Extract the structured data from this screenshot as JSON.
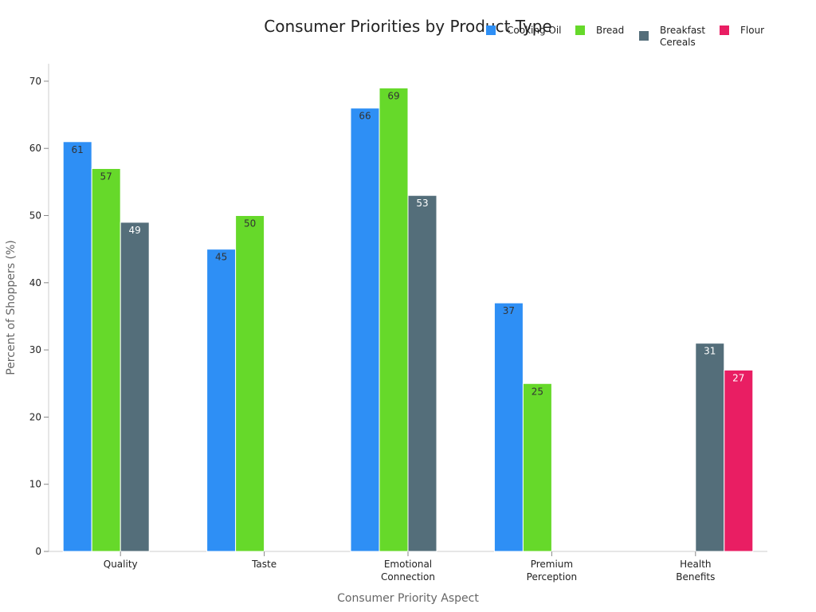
{
  "chart_data": {
    "type": "bar",
    "title": "Consumer Priorities by Product Type",
    "xlabel": "Consumer Priority Aspect",
    "ylabel": "Percent of Shoppers (%)",
    "ylim": [
      0,
      72.6
    ],
    "yticks": [
      0,
      10,
      20,
      30,
      40,
      50,
      60,
      70
    ],
    "categories": [
      [
        "Quality"
      ],
      [
        "Taste"
      ],
      [
        "Emotional",
        "Connection"
      ],
      [
        "Premium",
        "Perception"
      ],
      [
        "Health",
        "Benefits"
      ]
    ],
    "series": [
      {
        "name": [
          "Cooking Oil"
        ],
        "color": "#2e8ff5",
        "label_color": "#333333",
        "values": [
          61,
          45,
          66,
          37,
          null
        ]
      },
      {
        "name": [
          "Bread"
        ],
        "color": "#66d92a",
        "label_color": "#333333",
        "values": [
          57,
          50,
          69,
          25,
          null
        ]
      },
      {
        "name": [
          "Breakfast",
          "Cereals"
        ],
        "color": "#546e7a",
        "label_color": "#ffffff",
        "values": [
          49,
          null,
          53,
          null,
          31
        ]
      },
      {
        "name": [
          "Flour"
        ],
        "color": "#e91e63",
        "label_color": "#ffffff",
        "values": [
          null,
          null,
          null,
          null,
          27
        ]
      }
    ],
    "legend_position": "top-right",
    "grid": false
  }
}
